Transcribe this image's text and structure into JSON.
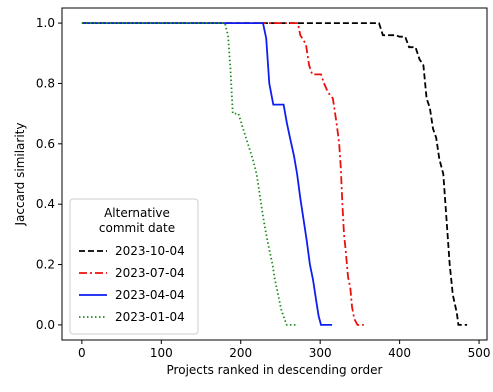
{
  "chart_data": {
    "type": "line",
    "title": "",
    "xlabel": "Projects ranked in descending order",
    "ylabel": "Jaccard similarity",
    "xlim": [
      -25,
      510
    ],
    "ylim": [
      -0.05,
      1.05
    ],
    "x_ticks": [
      0,
      100,
      200,
      300,
      400,
      500
    ],
    "y_ticks": [
      0.0,
      0.2,
      0.4,
      0.6,
      0.8,
      1.0
    ],
    "x_tick_labels": [
      "0",
      "100",
      "200",
      "300",
      "400",
      "500"
    ],
    "y_tick_labels": [
      "0.0",
      "0.2",
      "0.4",
      "0.6",
      "0.8",
      "1.0"
    ],
    "grid": false,
    "legend": {
      "title": "Alternative\ncommit date",
      "placement": "lower-left"
    },
    "series": [
      {
        "name": "2023-10-04",
        "color": "#000000",
        "style": "dashed",
        "points": [
          [
            0,
            1.0
          ],
          [
            374,
            1.0
          ],
          [
            379,
            0.96
          ],
          [
            395,
            0.96
          ],
          [
            400,
            0.955
          ],
          [
            407,
            0.955
          ],
          [
            412,
            0.92
          ],
          [
            420,
            0.92
          ],
          [
            425,
            0.88
          ],
          [
            430,
            0.86
          ],
          [
            434,
            0.75
          ],
          [
            438,
            0.72
          ],
          [
            442,
            0.65
          ],
          [
            446,
            0.62
          ],
          [
            450,
            0.55
          ],
          [
            455,
            0.5
          ],
          [
            459,
            0.35
          ],
          [
            463,
            0.2
          ],
          [
            467,
            0.1
          ],
          [
            472,
            0.04
          ],
          [
            474,
            0.0
          ],
          [
            485,
            0.0
          ]
        ]
      },
      {
        "name": "2023-07-04",
        "color": "#e8110e",
        "style": "dashdot",
        "points": [
          [
            0,
            1.0
          ],
          [
            272,
            1.0
          ],
          [
            275,
            0.96
          ],
          [
            282,
            0.93
          ],
          [
            286,
            0.86
          ],
          [
            290,
            0.83
          ],
          [
            301,
            0.83
          ],
          [
            305,
            0.8
          ],
          [
            310,
            0.77
          ],
          [
            316,
            0.75
          ],
          [
            321,
            0.66
          ],
          [
            324,
            0.6
          ],
          [
            326,
            0.52
          ],
          [
            328,
            0.4
          ],
          [
            330,
            0.3
          ],
          [
            332,
            0.25
          ],
          [
            335,
            0.16
          ],
          [
            338,
            0.12
          ],
          [
            340,
            0.06
          ],
          [
            343,
            0.02
          ],
          [
            347,
            0.0
          ],
          [
            355,
            0.0
          ]
        ]
      },
      {
        "name": "2023-04-04",
        "color": "#0d1ef0",
        "style": "solid",
        "points": [
          [
            0,
            1.0
          ],
          [
            228,
            1.0
          ],
          [
            232,
            0.95
          ],
          [
            236,
            0.8
          ],
          [
            241,
            0.73
          ],
          [
            254,
            0.73
          ],
          [
            258,
            0.67
          ],
          [
            262,
            0.62
          ],
          [
            267,
            0.56
          ],
          [
            271,
            0.5
          ],
          [
            275,
            0.42
          ],
          [
            279,
            0.35
          ],
          [
            283,
            0.28
          ],
          [
            287,
            0.2
          ],
          [
            291,
            0.15
          ],
          [
            295,
            0.08
          ],
          [
            298,
            0.03
          ],
          [
            301,
            0.0
          ],
          [
            315,
            0.0
          ]
        ]
      },
      {
        "name": "2023-01-04",
        "color": "#1f8e1f",
        "style": "dotted",
        "points": [
          [
            0,
            1.0
          ],
          [
            180,
            1.0
          ],
          [
            184,
            0.96
          ],
          [
            187,
            0.85
          ],
          [
            190,
            0.7
          ],
          [
            197,
            0.7
          ],
          [
            203,
            0.65
          ],
          [
            209,
            0.6
          ],
          [
            215,
            0.55
          ],
          [
            220,
            0.5
          ],
          [
            224,
            0.43
          ],
          [
            228,
            0.36
          ],
          [
            232,
            0.3
          ],
          [
            236,
            0.25
          ],
          [
            240,
            0.2
          ],
          [
            243,
            0.15
          ],
          [
            247,
            0.1
          ],
          [
            251,
            0.05
          ],
          [
            255,
            0.02
          ],
          [
            258,
            0.0
          ],
          [
            270,
            0.0
          ]
        ]
      }
    ]
  }
}
